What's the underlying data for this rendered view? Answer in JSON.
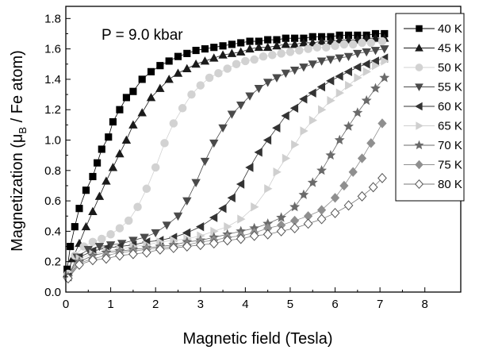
{
  "chart_data": {
    "type": "scatter",
    "annotation": "P = 9.0 kbar",
    "xlabel": "Magnetic field (Tesla)",
    "ylabel_main": "Magnetization (μ",
    "ylabel_sub": "B",
    "ylabel_tail": " / Fe atom)",
    "xlim": [
      0,
      8.8
    ],
    "ylim": [
      0,
      1.88
    ],
    "x_ticks": [
      0,
      1,
      2,
      3,
      4,
      5,
      6,
      7,
      8
    ],
    "y_ticks": [
      0.0,
      0.2,
      0.4,
      0.6,
      0.8,
      1.0,
      1.2,
      1.4,
      1.6,
      1.8
    ],
    "y_tick_labels": [
      "0.0",
      "0.2",
      "0.4",
      "0.6",
      "0.8",
      "1.0",
      "1.2",
      "1.4",
      "1.6",
      "1.8"
    ],
    "grid": false,
    "legend_position": "top-right",
    "series": [
      {
        "name": "40 K",
        "marker": "square",
        "filled": true,
        "color": "#000000",
        "x": [
          0.03,
          0.1,
          0.2,
          0.3,
          0.45,
          0.6,
          0.7,
          0.8,
          0.95,
          1.05,
          1.2,
          1.35,
          1.5,
          1.7,
          1.9,
          2.1,
          2.3,
          2.5,
          2.7,
          2.9,
          3.1,
          3.3,
          3.5,
          3.7,
          3.9,
          4.1,
          4.3,
          4.5,
          4.7,
          4.9,
          5.1,
          5.3,
          5.5,
          5.7,
          5.9,
          6.1,
          6.3,
          6.5,
          6.7,
          6.9,
          7.1
        ],
        "y": [
          0.15,
          0.3,
          0.43,
          0.55,
          0.67,
          0.76,
          0.85,
          0.94,
          1.02,
          1.12,
          1.2,
          1.28,
          1.32,
          1.4,
          1.45,
          1.49,
          1.52,
          1.55,
          1.57,
          1.59,
          1.6,
          1.61,
          1.62,
          1.63,
          1.64,
          1.65,
          1.65,
          1.66,
          1.66,
          1.67,
          1.67,
          1.67,
          1.68,
          1.68,
          1.68,
          1.69,
          1.69,
          1.69,
          1.69,
          1.7,
          1.7
        ]
      },
      {
        "name": "45 K",
        "marker": "triangle-up",
        "filled": true,
        "color": "#1a1a1a",
        "x": [
          0.03,
          0.15,
          0.3,
          0.45,
          0.6,
          0.75,
          0.9,
          1.05,
          1.2,
          1.35,
          1.5,
          1.7,
          1.9,
          2.1,
          2.3,
          2.5,
          2.7,
          2.9,
          3.1,
          3.3,
          3.5,
          3.7,
          3.9,
          4.1,
          4.3,
          4.5,
          4.7,
          4.9,
          5.1,
          5.3,
          5.5,
          5.7,
          5.9,
          6.1,
          6.3,
          6.5,
          6.7,
          6.9,
          7.1
        ],
        "y": [
          0.12,
          0.22,
          0.32,
          0.43,
          0.53,
          0.63,
          0.73,
          0.82,
          0.91,
          1.0,
          1.1,
          1.18,
          1.28,
          1.34,
          1.4,
          1.44,
          1.47,
          1.5,
          1.52,
          1.54,
          1.56,
          1.57,
          1.58,
          1.6,
          1.61,
          1.61,
          1.62,
          1.63,
          1.63,
          1.64,
          1.64,
          1.65,
          1.65,
          1.66,
          1.66,
          1.66,
          1.67,
          1.67,
          1.67
        ]
      },
      {
        "name": "50 K",
        "marker": "circle",
        "filled": true,
        "color": "#d2d2d2",
        "x": [
          0.05,
          0.2,
          0.4,
          0.6,
          0.8,
          1.0,
          1.2,
          1.4,
          1.6,
          1.8,
          2.0,
          2.2,
          2.4,
          2.6,
          2.8,
          3.0,
          3.2,
          3.4,
          3.6,
          3.8,
          4.0,
          4.2,
          4.4,
          4.6,
          4.8,
          5.0,
          5.2,
          5.4,
          5.6,
          5.8,
          6.0,
          6.2,
          6.4,
          6.6,
          6.8,
          7.05
        ],
        "y": [
          0.12,
          0.24,
          0.3,
          0.33,
          0.35,
          0.38,
          0.42,
          0.47,
          0.56,
          0.68,
          0.82,
          0.98,
          1.11,
          1.21,
          1.3,
          1.36,
          1.41,
          1.44,
          1.47,
          1.5,
          1.52,
          1.53,
          1.55,
          1.56,
          1.57,
          1.58,
          1.59,
          1.6,
          1.61,
          1.61,
          1.62,
          1.63,
          1.63,
          1.64,
          1.64,
          1.65
        ]
      },
      {
        "name": "55 K",
        "marker": "triangle-down",
        "filled": true,
        "color": "#4a4a4a",
        "x": [
          0.05,
          0.25,
          0.5,
          0.75,
          1.0,
          1.25,
          1.5,
          1.75,
          2.0,
          2.25,
          2.5,
          2.7,
          2.9,
          3.1,
          3.3,
          3.5,
          3.7,
          3.9,
          4.1,
          4.3,
          4.5,
          4.7,
          4.9,
          5.1,
          5.3,
          5.5,
          5.7,
          5.9,
          6.1,
          6.3,
          6.5,
          6.7,
          6.9,
          7.1
        ],
        "y": [
          0.1,
          0.23,
          0.28,
          0.3,
          0.31,
          0.32,
          0.34,
          0.36,
          0.39,
          0.44,
          0.5,
          0.6,
          0.72,
          0.86,
          0.98,
          1.08,
          1.17,
          1.23,
          1.29,
          1.34,
          1.38,
          1.41,
          1.44,
          1.46,
          1.48,
          1.5,
          1.52,
          1.53,
          1.54,
          1.55,
          1.57,
          1.58,
          1.59,
          1.6
        ]
      },
      {
        "name": "60 K",
        "marker": "triangle-left",
        "filled": true,
        "color": "#333333",
        "x": [
          0.05,
          0.3,
          0.6,
          0.9,
          1.2,
          1.5,
          1.8,
          2.1,
          2.4,
          2.7,
          3.0,
          3.3,
          3.5,
          3.7,
          3.9,
          4.1,
          4.3,
          4.5,
          4.7,
          4.9,
          5.1,
          5.3,
          5.5,
          5.7,
          5.9,
          6.1,
          6.3,
          6.5,
          6.7,
          6.9,
          7.1
        ],
        "y": [
          0.1,
          0.23,
          0.27,
          0.29,
          0.3,
          0.31,
          0.33,
          0.34,
          0.36,
          0.39,
          0.43,
          0.49,
          0.55,
          0.62,
          0.71,
          0.82,
          0.92,
          1.0,
          1.08,
          1.16,
          1.21,
          1.27,
          1.31,
          1.35,
          1.39,
          1.42,
          1.45,
          1.48,
          1.5,
          1.52,
          1.54
        ]
      },
      {
        "name": "65 K",
        "marker": "triangle-right",
        "filled": true,
        "color": "#cfcfcf",
        "x": [
          0.05,
          0.3,
          0.6,
          0.9,
          1.2,
          1.5,
          1.8,
          2.1,
          2.4,
          2.7,
          3.0,
          3.3,
          3.6,
          3.9,
          4.2,
          4.5,
          4.7,
          4.9,
          5.1,
          5.3,
          5.5,
          5.7,
          5.9,
          6.1,
          6.3,
          6.5,
          6.7,
          6.9,
          7.1
        ],
        "y": [
          0.1,
          0.22,
          0.25,
          0.27,
          0.28,
          0.3,
          0.31,
          0.33,
          0.34,
          0.35,
          0.37,
          0.4,
          0.43,
          0.48,
          0.56,
          0.68,
          0.79,
          0.88,
          0.97,
          1.06,
          1.13,
          1.2,
          1.26,
          1.31,
          1.36,
          1.41,
          1.45,
          1.49,
          1.52
        ]
      },
      {
        "name": "70 K",
        "marker": "star",
        "filled": true,
        "color": "#6a6a6a",
        "x": [
          0.05,
          0.3,
          0.6,
          0.9,
          1.2,
          1.5,
          1.8,
          2.1,
          2.4,
          2.7,
          3.0,
          3.3,
          3.6,
          3.9,
          4.2,
          4.5,
          4.8,
          5.1,
          5.3,
          5.5,
          5.7,
          5.9,
          6.1,
          6.3,
          6.5,
          6.7,
          6.9,
          7.1
        ],
        "y": [
          0.1,
          0.2,
          0.24,
          0.26,
          0.27,
          0.28,
          0.29,
          0.3,
          0.31,
          0.33,
          0.34,
          0.36,
          0.38,
          0.4,
          0.42,
          0.45,
          0.49,
          0.56,
          0.64,
          0.72,
          0.8,
          0.9,
          1.0,
          1.09,
          1.18,
          1.26,
          1.34,
          1.41
        ]
      },
      {
        "name": "75 K",
        "marker": "diamond",
        "filled": true,
        "color": "#8f8f8f",
        "x": [
          0.05,
          0.3,
          0.6,
          0.9,
          1.2,
          1.5,
          1.8,
          2.1,
          2.4,
          2.7,
          3.0,
          3.3,
          3.6,
          3.9,
          4.2,
          4.5,
          4.8,
          5.1,
          5.4,
          5.7,
          6.0,
          6.2,
          6.4,
          6.6,
          6.8,
          7.05
        ],
        "y": [
          0.09,
          0.19,
          0.22,
          0.24,
          0.26,
          0.27,
          0.28,
          0.29,
          0.3,
          0.31,
          0.33,
          0.34,
          0.36,
          0.37,
          0.39,
          0.42,
          0.44,
          0.47,
          0.5,
          0.54,
          0.62,
          0.7,
          0.79,
          0.88,
          0.98,
          1.11
        ]
      },
      {
        "name": "80 K",
        "marker": "diamond",
        "filled": false,
        "color": "#555555",
        "x": [
          0.05,
          0.3,
          0.6,
          0.9,
          1.2,
          1.5,
          1.8,
          2.1,
          2.4,
          2.7,
          3.0,
          3.3,
          3.6,
          3.9,
          4.2,
          4.5,
          4.8,
          5.1,
          5.4,
          5.7,
          6.0,
          6.3,
          6.6,
          6.85,
          7.05
        ],
        "y": [
          0.09,
          0.18,
          0.21,
          0.22,
          0.24,
          0.25,
          0.26,
          0.28,
          0.29,
          0.3,
          0.31,
          0.32,
          0.34,
          0.35,
          0.37,
          0.38,
          0.4,
          0.42,
          0.45,
          0.48,
          0.52,
          0.57,
          0.63,
          0.69,
          0.75
        ]
      }
    ]
  }
}
